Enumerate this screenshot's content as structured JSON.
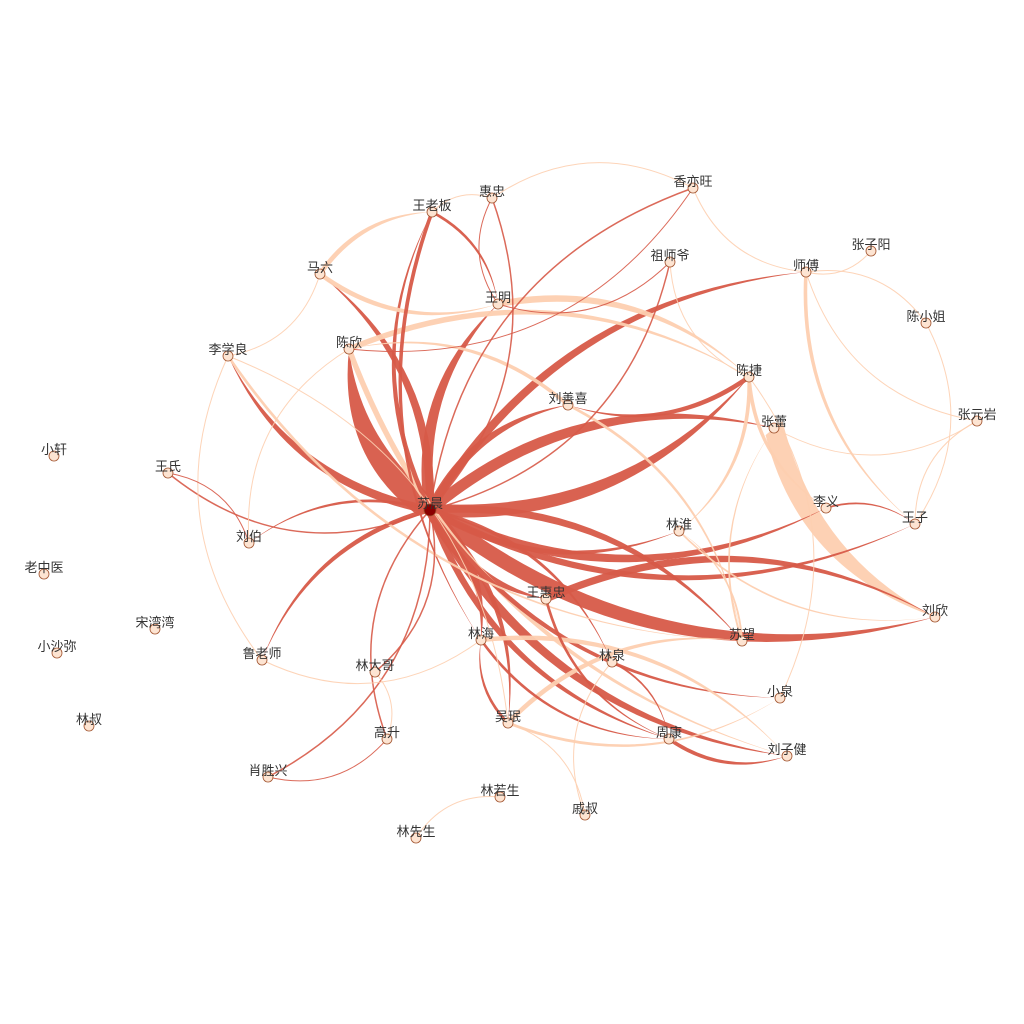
{
  "colors": {
    "dark_edge": "#d75a48",
    "light_edge": "#fdcfb0",
    "node_fill": "#fde4d2",
    "node_stroke": "#a0522d",
    "center_node": "#8b0000",
    "label": "#333333"
  },
  "nodes": [
    {
      "id": "suchen",
      "label": "苏晨",
      "center": true
    },
    {
      "id": "wanglaoban",
      "label": "王老板"
    },
    {
      "id": "huizhong",
      "label": "惠忠"
    },
    {
      "id": "xiangyiwang",
      "label": "香亦旺"
    },
    {
      "id": "maliu",
      "label": "马六"
    },
    {
      "id": "zushiye",
      "label": "祖师爷"
    },
    {
      "id": "shifu",
      "label": "师傅"
    },
    {
      "id": "zhangziyang",
      "label": "张子阳"
    },
    {
      "id": "wangming",
      "label": "王明"
    },
    {
      "id": "chenxiaojie",
      "label": "陈小姐"
    },
    {
      "id": "lixueliang",
      "label": "李学良"
    },
    {
      "id": "chenxin",
      "label": "陈欣"
    },
    {
      "id": "liushanxi",
      "label": "刘善喜"
    },
    {
      "id": "chenjie",
      "label": "陈捷"
    },
    {
      "id": "zhangyuanyan",
      "label": "张元岩"
    },
    {
      "id": "zhanglei",
      "label": "张蕾"
    },
    {
      "id": "xiaoxuan",
      "label": "小轩"
    },
    {
      "id": "wangshi",
      "label": "王氏"
    },
    {
      "id": "liyi",
      "label": "李义"
    },
    {
      "id": "wangzi",
      "label": "王子"
    },
    {
      "id": "linhuai",
      "label": "林淮"
    },
    {
      "id": "liubo",
      "label": "刘伯"
    },
    {
      "id": "laozhongyi",
      "label": "老中医"
    },
    {
      "id": "wanghuizhong",
      "label": "王惠忠"
    },
    {
      "id": "liuxin",
      "label": "刘欣"
    },
    {
      "id": "songwanwan",
      "label": "宋湾湾"
    },
    {
      "id": "linhai",
      "label": "林海"
    },
    {
      "id": "sumeng",
      "label": "苏望"
    },
    {
      "id": "xiaoshami",
      "label": "小沙弥"
    },
    {
      "id": "lulaoshi",
      "label": "鲁老师"
    },
    {
      "id": "linquan",
      "label": "林泉"
    },
    {
      "id": "lindage",
      "label": "林大哥"
    },
    {
      "id": "xiaoquan",
      "label": "小泉"
    },
    {
      "id": "linshu",
      "label": "林叔"
    },
    {
      "id": "wuhan",
      "label": "吴珉"
    },
    {
      "id": "gaosheng",
      "label": "高升"
    },
    {
      "id": "zhoukang",
      "label": "周康"
    },
    {
      "id": "liuzijian",
      "label": "刘子健"
    },
    {
      "id": "xiaoshengxing",
      "label": "肖胜兴"
    },
    {
      "id": "linruosheng",
      "label": "林若生"
    },
    {
      "id": "qishu",
      "label": "戚叔"
    },
    {
      "id": "linxiansheng",
      "label": "林先生"
    }
  ],
  "edges": [
    {
      "s": "suchen",
      "t": "liuxin",
      "w": 16,
      "tone": "dark"
    },
    {
      "s": "suchen",
      "t": "chenxin",
      "w": 26,
      "tone": "dark"
    },
    {
      "s": "suchen",
      "t": "chenjie",
      "w": 14,
      "tone": "dark"
    },
    {
      "s": "suchen",
      "t": "wangming",
      "w": 12,
      "tone": "dark"
    },
    {
      "s": "suchen",
      "t": "liyi",
      "w": 10,
      "tone": "dark"
    },
    {
      "s": "suchen",
      "t": "zhanglei",
      "w": 12,
      "tone": "dark"
    },
    {
      "s": "suchen",
      "t": "wanghuizhong",
      "w": 11,
      "tone": "dark"
    },
    {
      "s": "suchen",
      "t": "linhai",
      "w": 10,
      "tone": "dark"
    },
    {
      "s": "suchen",
      "t": "liuzijian",
      "w": 10,
      "tone": "dark"
    },
    {
      "s": "suchen",
      "t": "lixueliang",
      "w": 9,
      "tone": "dark"
    },
    {
      "s": "suchen",
      "t": "maliu",
      "w": 9,
      "tone": "dark"
    },
    {
      "s": "suchen",
      "t": "shifu",
      "w": 9,
      "tone": "dark"
    },
    {
      "s": "suchen",
      "t": "zhoukang",
      "w": 7,
      "tone": "dark"
    },
    {
      "s": "suchen",
      "t": "sumeng",
      "w": 8,
      "tone": "dark"
    },
    {
      "s": "suchen",
      "t": "wangzi",
      "w": 7,
      "tone": "dark"
    },
    {
      "s": "suchen",
      "t": "wuhan",
      "w": 6,
      "tone": "dark"
    },
    {
      "s": "suchen",
      "t": "lulaoshi",
      "w": 5,
      "tone": "dark"
    },
    {
      "s": "suchen",
      "t": "liushanxi",
      "w": 9,
      "tone": "dark"
    },
    {
      "s": "suchen",
      "t": "linhuai",
      "w": 6,
      "tone": "dark"
    },
    {
      "s": "suchen",
      "t": "wanglaoban",
      "w": 5,
      "tone": "dark"
    },
    {
      "s": "suchen",
      "t": "xiaoquan",
      "w": 5,
      "tone": "dark"
    },
    {
      "s": "suchen",
      "t": "linquan",
      "w": 4,
      "tone": "dark"
    },
    {
      "s": "suchen",
      "t": "liubo",
      "w": 3,
      "tone": "dark"
    },
    {
      "s": "suchen",
      "t": "wangshi",
      "w": 1.5,
      "tone": "dark"
    },
    {
      "s": "suchen",
      "t": "gaosheng",
      "w": 1.5,
      "tone": "dark"
    },
    {
      "s": "suchen",
      "t": "xiaoshengxing",
      "w": 1.5,
      "tone": "dark"
    },
    {
      "s": "suchen",
      "t": "huizhong",
      "w": 1.5,
      "tone": "dark"
    },
    {
      "s": "suchen",
      "t": "lindage",
      "w": 1.5,
      "tone": "dark"
    },
    {
      "s": "suchen",
      "t": "zushiye",
      "w": 1.5,
      "tone": "dark"
    },
    {
      "s": "suchen",
      "t": "xiangyiwang",
      "w": 1.5,
      "tone": "dark"
    },
    {
      "s": "zhanglei",
      "t": "liuxin",
      "w": 22,
      "tone": "light"
    },
    {
      "s": "chenxin",
      "t": "chenjie",
      "w": 6,
      "tone": "light"
    },
    {
      "s": "chenxin",
      "t": "liuzijian",
      "w": 6,
      "tone": "light"
    },
    {
      "s": "wangming",
      "t": "chenjie",
      "w": 7,
      "tone": "light"
    },
    {
      "s": "maliu",
      "t": "wangming",
      "w": 5,
      "tone": "light"
    },
    {
      "s": "maliu",
      "t": "wanglaoban",
      "w": 5,
      "tone": "light"
    },
    {
      "s": "shifu",
      "t": "wangzi",
      "w": 4,
      "tone": "light"
    },
    {
      "s": "shifu",
      "t": "xiangyiwang",
      "w": 1,
      "tone": "light"
    },
    {
      "s": "shifu",
      "t": "zhangziyang",
      "w": 1,
      "tone": "light"
    },
    {
      "s": "shifu",
      "t": "chenxiaojie",
      "w": 1,
      "tone": "light"
    },
    {
      "s": "shifu",
      "t": "zhangyuanyan",
      "w": 1,
      "tone": "light"
    },
    {
      "s": "chenjie",
      "t": "linhuai",
      "w": 4,
      "tone": "light"
    },
    {
      "s": "chenjie",
      "t": "liyi",
      "w": 4,
      "tone": "light"
    },
    {
      "s": "chenjie",
      "t": "liushanxi",
      "w": 5,
      "tone": "dark"
    },
    {
      "s": "liushanxi",
      "t": "chenxin",
      "w": 4,
      "tone": "light"
    },
    {
      "s": "liushanxi",
      "t": "sumeng",
      "w": 3,
      "tone": "light"
    },
    {
      "s": "lixueliang",
      "t": "sumeng",
      "w": 3,
      "tone": "light"
    },
    {
      "s": "lixueliang",
      "t": "wuhan",
      "w": 1,
      "tone": "light"
    },
    {
      "s": "lixueliang",
      "t": "lulaoshi",
      "w": 1,
      "tone": "light"
    },
    {
      "s": "wanghuizhong",
      "t": "liuxin",
      "w": 8,
      "tone": "dark"
    },
    {
      "s": "wanghuizhong",
      "t": "zhoukang",
      "w": 3,
      "tone": "dark"
    },
    {
      "s": "linhai",
      "t": "liuzijian",
      "w": 5,
      "tone": "light"
    },
    {
      "s": "linhai",
      "t": "zhoukang",
      "w": 3,
      "tone": "dark"
    },
    {
      "s": "wuhan",
      "t": "sumeng",
      "w": 5,
      "tone": "light"
    },
    {
      "s": "wuhan",
      "t": "xiaoquan",
      "w": 3,
      "tone": "light"
    },
    {
      "s": "wuhan",
      "t": "linhai",
      "w": 3,
      "tone": "dark"
    },
    {
      "s": "zhoukang",
      "t": "liuzijian",
      "w": 4,
      "tone": "dark"
    },
    {
      "s": "linquan",
      "t": "zhoukang",
      "w": 2,
      "tone": "dark"
    },
    {
      "s": "huizhong",
      "t": "wanglaoban",
      "w": 1,
      "tone": "light"
    },
    {
      "s": "huizhong",
      "t": "xiangyiwang",
      "w": 1,
      "tone": "light"
    },
    {
      "s": "huizhong",
      "t": "wangming",
      "w": 1,
      "tone": "dark"
    },
    {
      "s": "zushiye",
      "t": "wangming",
      "w": 1,
      "tone": "dark"
    },
    {
      "s": "zushiye",
      "t": "chenjie",
      "w": 1,
      "tone": "light"
    },
    {
      "s": "xiangyiwang",
      "t": "chenxin",
      "w": 1,
      "tone": "dark"
    },
    {
      "s": "wanglaoban",
      "t": "linhai",
      "w": 4,
      "tone": "dark"
    },
    {
      "s": "wanglaoban",
      "t": "wangming",
      "w": 3,
      "tone": "dark"
    },
    {
      "s": "liubo",
      "t": "wangshi",
      "w": 1,
      "tone": "dark"
    },
    {
      "s": "liubo",
      "t": "chenxin",
      "w": 1,
      "tone": "light"
    },
    {
      "s": "wangzi",
      "t": "chenxiaojie",
      "w": 1,
      "tone": "light"
    },
    {
      "s": "wangzi",
      "t": "zhangyuanyan",
      "w": 1,
      "tone": "light"
    },
    {
      "s": "sumeng",
      "t": "linhuai",
      "w": 2,
      "tone": "light"
    },
    {
      "s": "sumeng",
      "t": "zhanglei",
      "w": 2,
      "tone": "light"
    },
    {
      "s": "xiaoquan",
      "t": "chenjie",
      "w": 1,
      "tone": "light"
    },
    {
      "s": "lindage",
      "t": "gaosheng",
      "w": 1,
      "tone": "light"
    },
    {
      "s": "lulaoshi",
      "t": "linhai",
      "w": 1,
      "tone": "light"
    },
    {
      "s": "gaosheng",
      "t": "xiaoshengxing",
      "w": 1,
      "tone": "dark"
    },
    {
      "s": "linruosheng",
      "t": "linxiansheng",
      "w": 1,
      "tone": "light"
    },
    {
      "s": "qishu",
      "t": "linquan",
      "w": 1,
      "tone": "light"
    },
    {
      "s": "qishu",
      "t": "wuhan",
      "w": 1,
      "tone": "light"
    },
    {
      "s": "maliu",
      "t": "lixueliang",
      "w": 1,
      "tone": "light"
    },
    {
      "s": "linhuai",
      "t": "liuxin",
      "w": 2,
      "tone": "light"
    },
    {
      "s": "liyi",
      "t": "wangzi",
      "w": 2,
      "tone": "dark"
    },
    {
      "s": "zhanglei",
      "t": "zhangyuanyan",
      "w": 1,
      "tone": "light"
    }
  ]
}
